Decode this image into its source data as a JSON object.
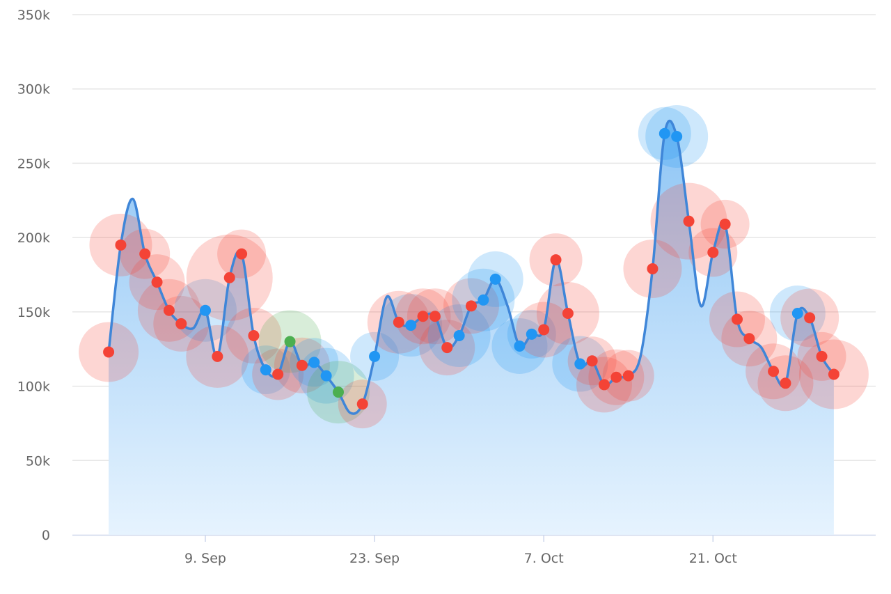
{
  "chart_data": {
    "type": "area",
    "title": "",
    "xlabel": "",
    "ylabel": "",
    "ylim": [
      0,
      350000
    ],
    "yticks": [
      "0",
      "50k",
      "100k",
      "150k",
      "200k",
      "250k",
      "300k",
      "350k"
    ],
    "ytick_values": [
      0,
      50000,
      100000,
      150000,
      200000,
      250000,
      300000,
      350000
    ],
    "xlim": [
      "Aug 29",
      "Nov 3"
    ],
    "xticks": [
      {
        "date": "Sep 9",
        "label": "9. Sep"
      },
      {
        "date": "Sep 23",
        "label": "23. Sep"
      },
      {
        "date": "Oct 7",
        "label": "7. Oct"
      },
      {
        "date": "Oct 21",
        "label": "21. Oct"
      }
    ],
    "grid": true,
    "colors": {
      "line": "#3f86d8",
      "area_top": "#8ec5f5",
      "area_bottom": "#e6f3fe",
      "red": "#f44336",
      "blue": "#2196f3",
      "green": "#4caf50",
      "grid": "#e6e6e6",
      "axis": "#ccd6eb"
    },
    "points": [
      {
        "x": "Sep 1",
        "y": 123000,
        "marker": "red",
        "z": 43
      },
      {
        "x": "Sep 2",
        "y": 195000,
        "marker": "red",
        "z": 45
      },
      {
        "x": "Sep 3",
        "y": 226000,
        "marker": "none",
        "z": 0
      },
      {
        "x": "Sep 4",
        "y": 189000,
        "marker": "red",
        "z": 36
      },
      {
        "x": "Sep 5",
        "y": 170000,
        "marker": "red",
        "z": 40
      },
      {
        "x": "Sep 6",
        "y": 151000,
        "marker": "red",
        "z": 45
      },
      {
        "x": "Sep 7",
        "y": 142000,
        "marker": "red",
        "z": 40
      },
      {
        "x": "Sep 8",
        "y": 139000,
        "marker": "none",
        "z": 0
      },
      {
        "x": "Sep 9",
        "y": 151000,
        "marker": "blue",
        "z": 45
      },
      {
        "x": "Sep 10",
        "y": 120000,
        "marker": "red",
        "z": 45
      },
      {
        "x": "Sep 11",
        "y": 173000,
        "marker": "red",
        "z": 62
      },
      {
        "x": "Sep 12",
        "y": 189000,
        "marker": "red",
        "z": 35
      },
      {
        "x": "Sep 13",
        "y": 134000,
        "marker": "red",
        "z": 40
      },
      {
        "x": "Sep 14",
        "y": 111000,
        "marker": "blue",
        "z": 35
      },
      {
        "x": "Sep 15",
        "y": 108000,
        "marker": "red",
        "z": 37
      },
      {
        "x": "Sep 16",
        "y": 130000,
        "marker": "green",
        "z": 45
      },
      {
        "x": "Sep 17",
        "y": 114000,
        "marker": "red",
        "z": 40
      },
      {
        "x": "Sep 18",
        "y": 116000,
        "marker": "blue",
        "z": 35
      },
      {
        "x": "Sep 19",
        "y": 107000,
        "marker": "blue",
        "z": 40
      },
      {
        "x": "Sep 20",
        "y": 96000,
        "marker": "green",
        "z": 45
      },
      {
        "x": "Sep 21",
        "y": 82000,
        "marker": "none",
        "z": 0
      },
      {
        "x": "Sep 22",
        "y": 88000,
        "marker": "red",
        "z": 35
      },
      {
        "x": "Sep 23",
        "y": 120000,
        "marker": "blue",
        "z": 35
      },
      {
        "x": "Sep 24",
        "y": 160000,
        "marker": "none",
        "z": 0
      },
      {
        "x": "Sep 25",
        "y": 143000,
        "marker": "red",
        "z": 45
      },
      {
        "x": "Sep 26",
        "y": 141000,
        "marker": "blue",
        "z": 45
      },
      {
        "x": "Sep 27",
        "y": 147000,
        "marker": "red",
        "z": 40
      },
      {
        "x": "Sep 28",
        "y": 147000,
        "marker": "red",
        "z": 40
      },
      {
        "x": "Sep 29",
        "y": 126000,
        "marker": "red",
        "z": 40
      },
      {
        "x": "Sep 30",
        "y": 134000,
        "marker": "blue",
        "z": 45
      },
      {
        "x": "Oct 1",
        "y": 154000,
        "marker": "red",
        "z": 40
      },
      {
        "x": "Oct 2",
        "y": 158000,
        "marker": "blue",
        "z": 45
      },
      {
        "x": "Oct 3",
        "y": 172000,
        "marker": "blue",
        "z": 40
      },
      {
        "x": "Oct 4",
        "y": 154000,
        "marker": "none",
        "z": 0
      },
      {
        "x": "Oct 5",
        "y": 127000,
        "marker": "blue",
        "z": 40
      },
      {
        "x": "Oct 6",
        "y": 135000,
        "marker": "blue",
        "z": 35
      },
      {
        "x": "Oct 7",
        "y": 138000,
        "marker": "red",
        "z": 40
      },
      {
        "x": "Oct 8",
        "y": 185000,
        "marker": "red",
        "z": 38
      },
      {
        "x": "Oct 9",
        "y": 149000,
        "marker": "red",
        "z": 45
      },
      {
        "x": "Oct 10",
        "y": 115000,
        "marker": "blue",
        "z": 40
      },
      {
        "x": "Oct 11",
        "y": 117000,
        "marker": "red",
        "z": 35
      },
      {
        "x": "Oct 12",
        "y": 101000,
        "marker": "red",
        "z": 40
      },
      {
        "x": "Oct 13",
        "y": 106000,
        "marker": "red",
        "z": 40
      },
      {
        "x": "Oct 14",
        "y": 107000,
        "marker": "red",
        "z": 37
      },
      {
        "x": "Oct 15",
        "y": 120000,
        "marker": "none",
        "z": 0
      },
      {
        "x": "Oct 16",
        "y": 179000,
        "marker": "red",
        "z": 42
      },
      {
        "x": "Oct 17",
        "y": 270000,
        "marker": "blue",
        "z": 38
      },
      {
        "x": "Oct 18",
        "y": 268000,
        "marker": "blue",
        "z": 45
      },
      {
        "x": "Oct 19",
        "y": 211000,
        "marker": "red",
        "z": 55
      },
      {
        "x": "Oct 20",
        "y": 154000,
        "marker": "none",
        "z": 0
      },
      {
        "x": "Oct 21",
        "y": 190000,
        "marker": "red",
        "z": 35
      },
      {
        "x": "Oct 22",
        "y": 209000,
        "marker": "red",
        "z": 35
      },
      {
        "x": "Oct 23",
        "y": 145000,
        "marker": "red",
        "z": 40
      },
      {
        "x": "Oct 24",
        "y": 132000,
        "marker": "red",
        "z": 40
      },
      {
        "x": "Oct 25",
        "y": 126000,
        "marker": "none",
        "z": 0
      },
      {
        "x": "Oct 26",
        "y": 110000,
        "marker": "red",
        "z": 40
      },
      {
        "x": "Oct 27",
        "y": 102000,
        "marker": "red",
        "z": 40
      },
      {
        "x": "Oct 28",
        "y": 149000,
        "marker": "blue",
        "z": 40
      },
      {
        "x": "Oct 29",
        "y": 146000,
        "marker": "red",
        "z": 42
      },
      {
        "x": "Oct 30",
        "y": 120000,
        "marker": "red",
        "z": 35
      },
      {
        "x": "Oct 31",
        "y": 108000,
        "marker": "red",
        "z": 50
      }
    ]
  }
}
